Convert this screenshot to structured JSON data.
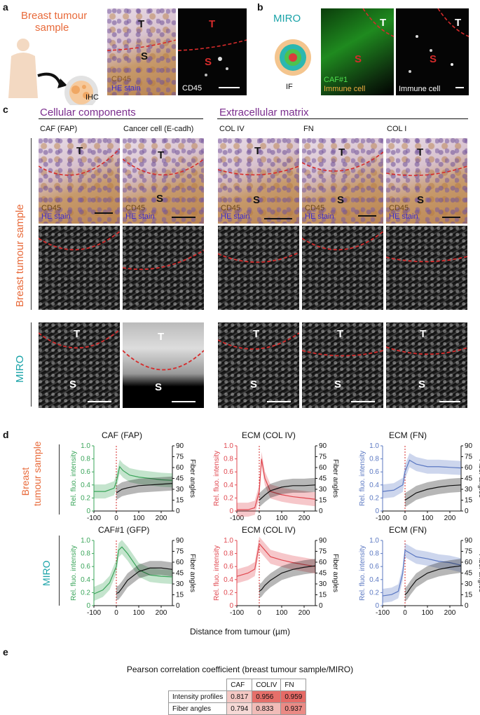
{
  "panels": {
    "a": "a",
    "b": "b",
    "c": "c",
    "d": "d",
    "e": "e"
  },
  "a": {
    "title_line1": "Breast tumour",
    "title_line2": "sample",
    "ihc": "IHC",
    "tile1_T": "T",
    "tile1_S": "S",
    "tile1_cd45": "CD45",
    "tile1_he": "HE stain",
    "tile2_T": "T",
    "tile2_S": "S",
    "tile2_cd45": "CD45"
  },
  "b": {
    "title": "MIRO",
    "if_label": "IF",
    "tile1_T": "T",
    "tile1_S": "S",
    "tile1_caf": "CAF#1",
    "tile1_immune": "Immune cell",
    "tile2_T": "T",
    "tile2_S": "S",
    "tile2_immune": "Immune cell"
  },
  "c": {
    "section1": "Cellular components",
    "section2": "Extracellular matrix",
    "row_label_breast": "Breast tumour sample",
    "row_label_miro": "MIRO",
    "columns": [
      "CAF (FAP)",
      "Cancer cell (E-cadh)",
      "COL IV",
      "FN",
      "COL I"
    ],
    "tileT": "T",
    "tileS": "S",
    "cd45": "CD45",
    "he": "HE stain"
  },
  "d": {
    "row_label_breast_1": "Breast",
    "row_label_breast_2": "tumour sample",
    "row_label_miro": "MIRO",
    "titles_top": [
      "CAF (FAP)",
      "ECM (COL IV)",
      "ECM (FN)"
    ],
    "titles_bottom": [
      "CAF#1 (GFP)",
      "ECM (COL IV)",
      "ECM (FN)"
    ],
    "y_left": "Rel. fluo. intensity",
    "y_right": "Fiber angles",
    "x_label": "Distance from tumour (µm)",
    "y_left_ticks": [
      "0",
      "0.2",
      "0.4",
      "0.6",
      "0.8",
      "1.0"
    ],
    "y_right_ticks": [
      "0",
      "15",
      "30",
      "45",
      "60",
      "75",
      "90"
    ],
    "x_ticks": [
      "-100",
      "0",
      "100",
      "200"
    ],
    "colors": {
      "green": "#3aa55a",
      "red": "#e0474f",
      "blue": "#5b78c2",
      "black": "#111111"
    }
  },
  "chart_data": [
    {
      "type": "line",
      "xlim": [
        -100,
        250
      ],
      "ylim": [
        0,
        1
      ],
      "y2lim": [
        0,
        90
      ],
      "series": [
        {
          "color": "#3aa55a",
          "x": [
            -100,
            -50,
            -10,
            0,
            15,
            30,
            60,
            100,
            150,
            200,
            250
          ],
          "values": [
            0.3,
            0.3,
            0.35,
            0.45,
            0.68,
            0.62,
            0.55,
            0.52,
            0.5,
            0.48,
            0.47
          ]
        },
        {
          "color": "#111111",
          "axis": "right",
          "x": [
            0,
            25,
            50,
            100,
            150,
            200,
            250
          ],
          "values": [
            25,
            30,
            32,
            35,
            36,
            37,
            38
          ]
        }
      ]
    },
    {
      "type": "line",
      "xlim": [
        -100,
        250
      ],
      "ylim": [
        0,
        1
      ],
      "y2lim": [
        0,
        90
      ],
      "series": [
        {
          "color": "#e0474f",
          "x": [
            -100,
            -50,
            -20,
            0,
            10,
            25,
            50,
            100,
            150,
            200,
            250
          ],
          "values": [
            0.02,
            0.02,
            0.05,
            0.3,
            0.8,
            0.5,
            0.3,
            0.25,
            0.22,
            0.2,
            0.18
          ]
        },
        {
          "color": "#111111",
          "axis": "right",
          "x": [
            0,
            25,
            50,
            100,
            150,
            200,
            250
          ],
          "values": [
            15,
            22,
            28,
            33,
            35,
            35,
            36
          ]
        }
      ]
    },
    {
      "type": "line",
      "xlim": [
        -100,
        250
      ],
      "ylim": [
        0,
        1
      ],
      "y2lim": [
        0,
        90
      ],
      "series": [
        {
          "color": "#5b78c2",
          "x": [
            -100,
            -50,
            -10,
            0,
            20,
            50,
            100,
            150,
            200,
            250
          ],
          "values": [
            0.3,
            0.32,
            0.4,
            0.6,
            0.78,
            0.72,
            0.68,
            0.68,
            0.67,
            0.66
          ]
        },
        {
          "color": "#111111",
          "axis": "right",
          "x": [
            0,
            25,
            50,
            100,
            150,
            200,
            250
          ],
          "values": [
            15,
            20,
            25,
            30,
            33,
            35,
            36
          ]
        }
      ]
    },
    {
      "type": "line",
      "xlim": [
        -100,
        250
      ],
      "ylim": [
        0,
        1
      ],
      "y2lim": [
        0,
        90
      ],
      "series": [
        {
          "color": "#3aa55a",
          "x": [
            -100,
            -60,
            -30,
            0,
            10,
            25,
            50,
            100,
            150,
            200,
            250
          ],
          "values": [
            0.18,
            0.24,
            0.35,
            0.6,
            0.85,
            0.9,
            0.8,
            0.55,
            0.47,
            0.45,
            0.44
          ]
        },
        {
          "color": "#111111",
          "axis": "right",
          "x": [
            0,
            10,
            25,
            50,
            100,
            150,
            200,
            250
          ],
          "values": [
            17,
            18,
            24,
            35,
            47,
            52,
            52,
            50
          ]
        }
      ]
    },
    {
      "type": "line",
      "xlim": [
        -100,
        250
      ],
      "ylim": [
        0,
        1
      ],
      "y2lim": [
        0,
        90
      ],
      "series": [
        {
          "color": "#e0474f",
          "x": [
            -100,
            -50,
            -20,
            -5,
            0,
            25,
            50,
            100,
            150,
            200,
            250
          ],
          "values": [
            0.45,
            0.5,
            0.56,
            0.85,
            0.95,
            0.85,
            0.75,
            0.7,
            0.66,
            0.63,
            0.6
          ]
        },
        {
          "color": "#111111",
          "axis": "right",
          "x": [
            0,
            10,
            25,
            50,
            100,
            150,
            200,
            250
          ],
          "values": [
            20,
            22,
            28,
            35,
            45,
            50,
            53,
            55
          ]
        }
      ]
    },
    {
      "type": "line",
      "xlim": [
        -100,
        250
      ],
      "ylim": [
        0,
        1
      ],
      "y2lim": [
        0,
        90
      ],
      "series": [
        {
          "color": "#5b78c2",
          "x": [
            -100,
            -60,
            -30,
            -10,
            0,
            25,
            50,
            100,
            150,
            200,
            250
          ],
          "values": [
            0.15,
            0.17,
            0.22,
            0.5,
            0.85,
            0.8,
            0.75,
            0.72,
            0.68,
            0.66,
            0.62
          ]
        },
        {
          "color": "#111111",
          "axis": "right",
          "x": [
            0,
            10,
            25,
            50,
            100,
            150,
            200,
            250
          ],
          "values": [
            15,
            18,
            25,
            35,
            45,
            50,
            53,
            55
          ]
        }
      ]
    }
  ],
  "e": {
    "title": "Pearson correlation coefficient (breast tumour sample/MIRO)",
    "headers": [
      "CAF",
      "COLIV",
      "FN"
    ],
    "rows": [
      {
        "label": "Intensity profiles",
        "values": [
          "0.817",
          "0.956",
          "0.959"
        ]
      },
      {
        "label": "Fiber angles",
        "values": [
          "0.794",
          "0.833",
          "0.937"
        ]
      }
    ]
  }
}
